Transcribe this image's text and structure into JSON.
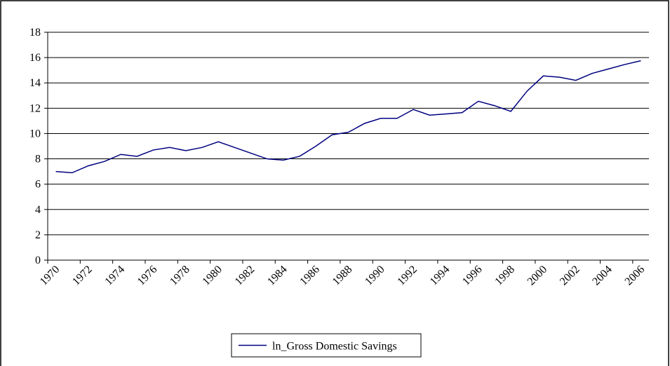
{
  "chart_data": {
    "type": "line",
    "categories": [
      "1970",
      null,
      "1972",
      null,
      "1974",
      null,
      "1976",
      null,
      "1978",
      null,
      "1980",
      null,
      "1982",
      null,
      "1984",
      null,
      "1986",
      null,
      "1988",
      null,
      "1990",
      null,
      "1992",
      null,
      "1994",
      null,
      "1996",
      null,
      "1998",
      null,
      "2000",
      null,
      "2002",
      null,
      "2004",
      null,
      "2006"
    ],
    "series": [
      {
        "name": "ln_Gross Domestic Savings",
        "color": "#000080",
        "values": [
          7.0,
          6.9,
          7.45,
          7.8,
          8.35,
          8.2,
          8.7,
          8.9,
          8.65,
          8.9,
          9.35,
          8.9,
          8.45,
          8.0,
          7.9,
          8.2,
          9.0,
          9.9,
          10.1,
          10.8,
          11.2,
          11.2,
          11.9,
          11.45,
          11.55,
          11.65,
          12.55,
          12.2,
          11.75,
          13.35,
          14.55,
          14.45,
          14.2,
          14.75,
          15.1,
          15.45,
          15.75
        ]
      }
    ],
    "ylim": [
      0,
      18
    ],
    "yticks": [
      0,
      2,
      4,
      6,
      8,
      10,
      12,
      14,
      16,
      18
    ],
    "grid": true,
    "legend": "bottom"
  }
}
